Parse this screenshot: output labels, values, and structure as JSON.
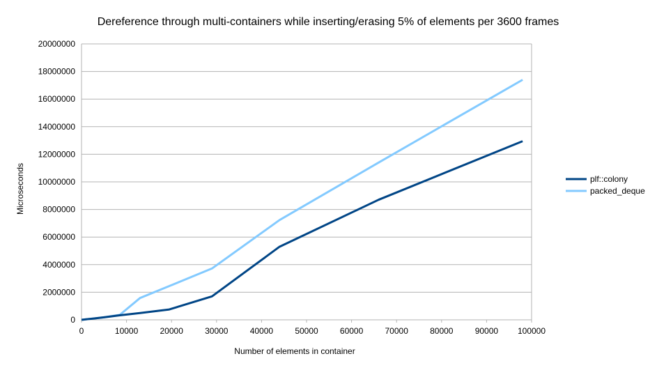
{
  "chart_data": {
    "type": "line",
    "title": "Dereference through multi-containers while inserting/erasing 5% of elements per 3600 frames",
    "xlabel": "Number of elements in container",
    "ylabel": "Microseconds",
    "xlim": [
      0,
      100000
    ],
    "ylim": [
      0,
      20000000
    ],
    "x_ticks": [
      "0",
      "10000",
      "20000",
      "30000",
      "40000",
      "50000",
      "60000",
      "70000",
      "80000",
      "90000",
      "100000"
    ],
    "y_ticks": [
      "0",
      "2000000",
      "4000000",
      "6000000",
      "8000000",
      "10000000",
      "12000000",
      "14000000",
      "16000000",
      "18000000",
      "20000000"
    ],
    "grid": true,
    "legend_position": "right",
    "series": [
      {
        "name": "plf::colony",
        "color": "#004586",
        "points": [
          [
            10,
            0
          ],
          [
            1000,
            40000
          ],
          [
            2500,
            90000
          ],
          [
            5000,
            180000
          ],
          [
            8500,
            330000
          ],
          [
            13000,
            490000
          ],
          [
            19500,
            750000
          ],
          [
            29000,
            1700000
          ],
          [
            44000,
            5300000
          ],
          [
            66000,
            8700000
          ],
          [
            98000,
            12950000
          ]
        ]
      },
      {
        "name": "packed_deque",
        "color": "#83caff",
        "points": [
          [
            10,
            0
          ],
          [
            1000,
            40000
          ],
          [
            2500,
            90000
          ],
          [
            5000,
            180000
          ],
          [
            8500,
            360000
          ],
          [
            13000,
            1580000
          ],
          [
            19500,
            2450000
          ],
          [
            29000,
            3720000
          ],
          [
            44000,
            7230000
          ],
          [
            66000,
            11400000
          ],
          [
            98000,
            17400000
          ]
        ]
      }
    ]
  }
}
